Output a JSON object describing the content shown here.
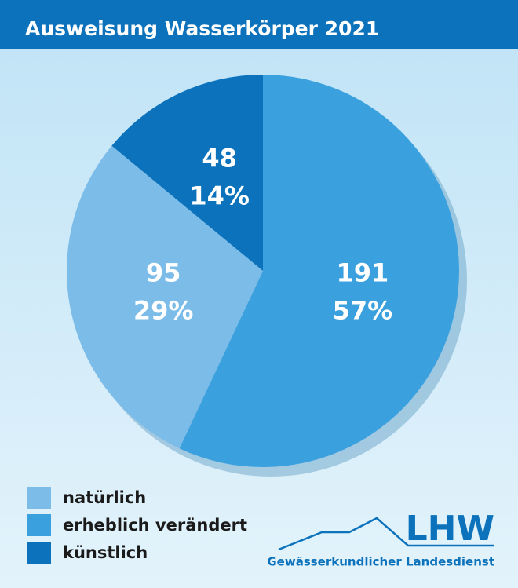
{
  "chart_data": {
    "type": "pie",
    "title": "Ausweisung Wasserkörper 2021",
    "categories": [
      "natürlich",
      "erheblich verändert",
      "künstlich"
    ],
    "values": [
      29,
      57,
      14
    ],
    "value_labels": [
      "29%",
      "57%",
      "14%"
    ],
    "counts": [
      95,
      191,
      48
    ],
    "colors": [
      "#7cbce8",
      "#3aa0de",
      "#0b72bb"
    ]
  },
  "logo": {
    "name": "LHW",
    "subtitle": "Gewässerkundlicher Landesdienst"
  }
}
